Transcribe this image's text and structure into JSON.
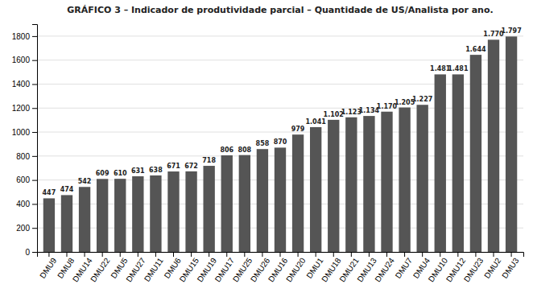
{
  "chart_data": {
    "type": "bar",
    "title": "GRÁFICO 3 – Indicador de produtividade parcial – Quantidade de US/Analista por ano.",
    "categories": [
      "DMU9",
      "DMU8",
      "DMU14",
      "DMU22",
      "DMU5",
      "DMU27",
      "DMU11",
      "DMU6",
      "DMU15",
      "DMU19",
      "DMU17",
      "DMU25",
      "DMU26",
      "DMU16",
      "DMU20",
      "DMU1",
      "DMU18",
      "DMU21",
      "DMU13",
      "DMU24",
      "DMU7",
      "DMU4",
      "DMU10",
      "DMU12",
      "DMU23",
      "DMU2",
      "DMU3"
    ],
    "values": [
      447,
      474,
      542,
      609,
      610,
      631,
      638,
      671,
      672,
      718,
      806,
      808,
      858,
      870,
      979,
      1041,
      1102,
      1123,
      1134,
      1170,
      1205,
      1227,
      1481,
      1481,
      1644,
      1770,
      1797
    ],
    "value_labels": [
      "447",
      "474",
      "542",
      "609",
      "610",
      "631",
      "638",
      "671",
      "672",
      "718",
      "806",
      "808",
      "858",
      "870",
      "979",
      "1.041",
      "1.102",
      "1.123",
      "1.134",
      "1.170",
      "1.205",
      "1.227",
      "1.481",
      "1.481",
      "1.644",
      "1.770",
      "1.797"
    ],
    "data_labels": true,
    "color": "#555555",
    "ylim": [
      0,
      1900
    ],
    "yticks": [
      0,
      200,
      400,
      600,
      800,
      1000,
      1200,
      1400,
      1600,
      1800
    ],
    "grid": true
  }
}
